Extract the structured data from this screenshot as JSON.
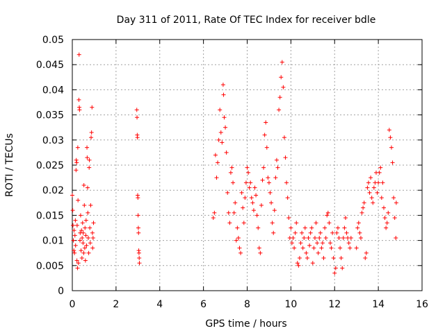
{
  "chart_data": {
    "type": "scatter",
    "title": "Day 311 of 2011, Rate Of TEC Index for receiver bdle",
    "xlabel": "GPS time / hours",
    "ylabel": "ROTI / TECUs",
    "xlim": [
      0,
      16
    ],
    "ylim": [
      0,
      0.05
    ],
    "x_ticks": [
      "0",
      "2",
      "4",
      "6",
      "8",
      "10",
      "12",
      "14",
      "16"
    ],
    "y_ticks": [
      "0",
      "0.005",
      "0.01",
      "0.015",
      "0.02",
      "0.025",
      "0.03",
      "0.035",
      "0.04",
      "0.045",
      "0.05"
    ],
    "grid": true,
    "marker": "+",
    "color": "#ff0000",
    "series": [
      {
        "points": [
          [
            0.0,
            0.019
          ],
          [
            0.02,
            0.016
          ],
          [
            0.03,
            0.013
          ],
          [
            0.05,
            0.01
          ],
          [
            0.07,
            0.008
          ],
          [
            0.08,
            0.012
          ],
          [
            0.1,
            0.0075
          ],
          [
            0.12,
            0.011
          ],
          [
            0.14,
            0.014
          ],
          [
            0.15,
            0.009
          ],
          [
            0.17,
            0.024
          ],
          [
            0.18,
            0.026
          ],
          [
            0.2,
            0.0255
          ],
          [
            0.21,
            0.006
          ],
          [
            0.22,
            0.013
          ],
          [
            0.24,
            0.0045
          ],
          [
            0.25,
            0.0285
          ],
          [
            0.26,
            0.018
          ],
          [
            0.28,
            0.0055
          ],
          [
            0.3,
            0.038
          ],
          [
            0.31,
            0.047
          ],
          [
            0.32,
            0.0365
          ],
          [
            0.33,
            0.036
          ],
          [
            0.35,
            0.01
          ],
          [
            0.36,
            0.0115
          ],
          [
            0.38,
            0.015
          ],
          [
            0.4,
            0.008
          ],
          [
            0.42,
            0.012
          ],
          [
            0.44,
            0.0065
          ],
          [
            0.45,
            0.0105
          ],
          [
            0.47,
            0.0135
          ],
          [
            0.49,
            0.0095
          ],
          [
            0.5,
            0.0115
          ],
          [
            0.52,
            0.0075
          ],
          [
            0.53,
            0.021
          ],
          [
            0.55,
            0.017
          ],
          [
            0.57,
            0.0085
          ],
          [
            0.58,
            0.0125
          ],
          [
            0.6,
            0.006
          ],
          [
            0.62,
            0.011
          ],
          [
            0.63,
            0.014
          ],
          [
            0.65,
            0.009
          ],
          [
            0.67,
            0.0285
          ],
          [
            0.68,
            0.0265
          ],
          [
            0.7,
            0.0205
          ],
          [
            0.71,
            0.0155
          ],
          [
            0.73,
            0.0105
          ],
          [
            0.75,
            0.0075
          ],
          [
            0.77,
            0.0245
          ],
          [
            0.78,
            0.026
          ],
          [
            0.8,
            0.0125
          ],
          [
            0.82,
            0.0095
          ],
          [
            0.84,
            0.017
          ],
          [
            0.86,
            0.0305
          ],
          [
            0.88,
            0.0315
          ],
          [
            0.9,
            0.0365
          ],
          [
            0.92,
            0.0115
          ],
          [
            0.93,
            0.0085
          ],
          [
            0.95,
            0.0105
          ],
          [
            0.97,
            0.0135
          ],
          [
            2.95,
            0.036
          ],
          [
            2.96,
            0.0345
          ],
          [
            2.97,
            0.031
          ],
          [
            2.98,
            0.0305
          ],
          [
            2.99,
            0.019
          ],
          [
            3.0,
            0.0185
          ],
          [
            3.01,
            0.015
          ],
          [
            3.02,
            0.0125
          ],
          [
            3.03,
            0.0115
          ],
          [
            3.04,
            0.008
          ],
          [
            3.05,
            0.0075
          ],
          [
            3.06,
            0.0065
          ],
          [
            3.07,
            0.0055
          ],
          [
            6.45,
            0.0145
          ],
          [
            6.5,
            0.0155
          ],
          [
            6.55,
            0.027
          ],
          [
            6.6,
            0.0225
          ],
          [
            6.65,
            0.0255
          ],
          [
            6.7,
            0.03
          ],
          [
            6.75,
            0.036
          ],
          [
            6.8,
            0.0315
          ],
          [
            6.85,
            0.0295
          ],
          [
            6.9,
            0.041
          ],
          [
            6.92,
            0.039
          ],
          [
            6.95,
            0.0345
          ],
          [
            7.0,
            0.0325
          ],
          [
            7.05,
            0.0275
          ],
          [
            7.1,
            0.0195
          ],
          [
            7.15,
            0.0155
          ],
          [
            7.2,
            0.0135
          ],
          [
            7.25,
            0.0235
          ],
          [
            7.3,
            0.0245
          ],
          [
            7.35,
            0.0215
          ],
          [
            7.4,
            0.0155
          ],
          [
            7.45,
            0.0175
          ],
          [
            7.5,
            0.01
          ],
          [
            7.55,
            0.0125
          ],
          [
            7.6,
            0.0105
          ],
          [
            7.65,
            0.0085
          ],
          [
            7.7,
            0.0075
          ],
          [
            7.75,
            0.0195
          ],
          [
            7.8,
            0.0165
          ],
          [
            7.85,
            0.0135
          ],
          [
            7.9,
            0.0185
          ],
          [
            7.95,
            0.0215
          ],
          [
            8.0,
            0.0245
          ],
          [
            8.05,
            0.0235
          ],
          [
            8.1,
            0.0205
          ],
          [
            8.15,
            0.0215
          ],
          [
            8.2,
            0.0185
          ],
          [
            8.25,
            0.0175
          ],
          [
            8.3,
            0.016
          ],
          [
            8.35,
            0.0205
          ],
          [
            8.4,
            0.019
          ],
          [
            8.45,
            0.015
          ],
          [
            8.5,
            0.0125
          ],
          [
            8.55,
            0.0085
          ],
          [
            8.6,
            0.0075
          ],
          [
            8.65,
            0.017
          ],
          [
            8.7,
            0.022
          ],
          [
            8.75,
            0.0245
          ],
          [
            8.8,
            0.031
          ],
          [
            8.85,
            0.0335
          ],
          [
            8.9,
            0.0285
          ],
          [
            8.95,
            0.0225
          ],
          [
            9.0,
            0.0215
          ],
          [
            9.05,
            0.0195
          ],
          [
            9.1,
            0.0175
          ],
          [
            9.15,
            0.0135
          ],
          [
            9.2,
            0.0115
          ],
          [
            9.25,
            0.016
          ],
          [
            9.3,
            0.0225
          ],
          [
            9.35,
            0.026
          ],
          [
            9.4,
            0.0245
          ],
          [
            9.45,
            0.036
          ],
          [
            9.5,
            0.0385
          ],
          [
            9.55,
            0.0425
          ],
          [
            9.6,
            0.0455
          ],
          [
            9.65,
            0.0405
          ],
          [
            9.7,
            0.0305
          ],
          [
            9.75,
            0.0265
          ],
          [
            9.8,
            0.0215
          ],
          [
            9.85,
            0.0185
          ],
          [
            9.9,
            0.0145
          ],
          [
            9.95,
            0.0105
          ],
          [
            10.0,
            0.0125
          ],
          [
            10.05,
            0.0095
          ],
          [
            10.1,
            0.0105
          ],
          [
            10.15,
            0.0085
          ],
          [
            10.2,
            0.0115
          ],
          [
            10.25,
            0.0135
          ],
          [
            10.3,
            0.0055
          ],
          [
            10.35,
            0.005
          ],
          [
            10.4,
            0.0065
          ],
          [
            10.45,
            0.0095
          ],
          [
            10.5,
            0.0115
          ],
          [
            10.55,
            0.0085
          ],
          [
            10.6,
            0.0105
          ],
          [
            10.65,
            0.0125
          ],
          [
            10.7,
            0.0075
          ],
          [
            10.75,
            0.0065
          ],
          [
            10.8,
            0.0105
          ],
          [
            10.85,
            0.009
          ],
          [
            10.9,
            0.0115
          ],
          [
            10.95,
            0.0125
          ],
          [
            11.0,
            0.0055
          ],
          [
            11.05,
            0.0085
          ],
          [
            11.1,
            0.0105
          ],
          [
            11.15,
            0.0135
          ],
          [
            11.2,
            0.0095
          ],
          [
            11.25,
            0.0075
          ],
          [
            11.3,
            0.0105
          ],
          [
            11.35,
            0.0115
          ],
          [
            11.4,
            0.0085
          ],
          [
            11.45,
            0.0095
          ],
          [
            11.5,
            0.0065
          ],
          [
            11.55,
            0.0125
          ],
          [
            11.6,
            0.0105
          ],
          [
            11.65,
            0.015
          ],
          [
            11.7,
            0.0155
          ],
          [
            11.75,
            0.0135
          ],
          [
            11.8,
            0.0095
          ],
          [
            11.85,
            0.0085
          ],
          [
            11.9,
            0.0115
          ],
          [
            11.95,
            0.0065
          ],
          [
            12.0,
            0.0035
          ],
          [
            12.05,
            0.0045
          ],
          [
            12.1,
            0.0115
          ],
          [
            12.15,
            0.0125
          ],
          [
            12.2,
            0.0105
          ],
          [
            12.25,
            0.0085
          ],
          [
            12.3,
            0.0065
          ],
          [
            12.35,
            0.0045
          ],
          [
            12.4,
            0.0105
          ],
          [
            12.45,
            0.0125
          ],
          [
            12.5,
            0.0145
          ],
          [
            12.55,
            0.0115
          ],
          [
            12.6,
            0.0105
          ],
          [
            12.65,
            0.0095
          ],
          [
            12.7,
            0.0085
          ],
          [
            12.75,
            0.0105
          ],
          [
            13.0,
            0.0085
          ],
          [
            13.05,
            0.0125
          ],
          [
            13.1,
            0.0135
          ],
          [
            13.15,
            0.0115
          ],
          [
            13.2,
            0.0105
          ],
          [
            13.25,
            0.0155
          ],
          [
            13.3,
            0.0165
          ],
          [
            13.35,
            0.0175
          ],
          [
            13.4,
            0.0065
          ],
          [
            13.45,
            0.0075
          ],
          [
            13.5,
            0.0205
          ],
          [
            13.55,
            0.0215
          ],
          [
            13.6,
            0.0195
          ],
          [
            13.65,
            0.0225
          ],
          [
            13.7,
            0.0185
          ],
          [
            13.75,
            0.0175
          ],
          [
            13.8,
            0.0205
          ],
          [
            13.85,
            0.0215
          ],
          [
            13.9,
            0.0235
          ],
          [
            13.95,
            0.0195
          ],
          [
            14.0,
            0.0215
          ],
          [
            14.05,
            0.0235
          ],
          [
            14.1,
            0.0245
          ],
          [
            14.15,
            0.0185
          ],
          [
            14.2,
            0.0215
          ],
          [
            14.25,
            0.0165
          ],
          [
            14.3,
            0.0145
          ],
          [
            14.35,
            0.0125
          ],
          [
            14.4,
            0.0135
          ],
          [
            14.45,
            0.0155
          ],
          [
            14.5,
            0.032
          ],
          [
            14.55,
            0.0305
          ],
          [
            14.6,
            0.0285
          ],
          [
            14.65,
            0.0255
          ],
          [
            14.7,
            0.0185
          ],
          [
            14.75,
            0.0145
          ],
          [
            14.8,
            0.0105
          ],
          [
            14.82,
            0.0175
          ]
        ]
      }
    ]
  }
}
